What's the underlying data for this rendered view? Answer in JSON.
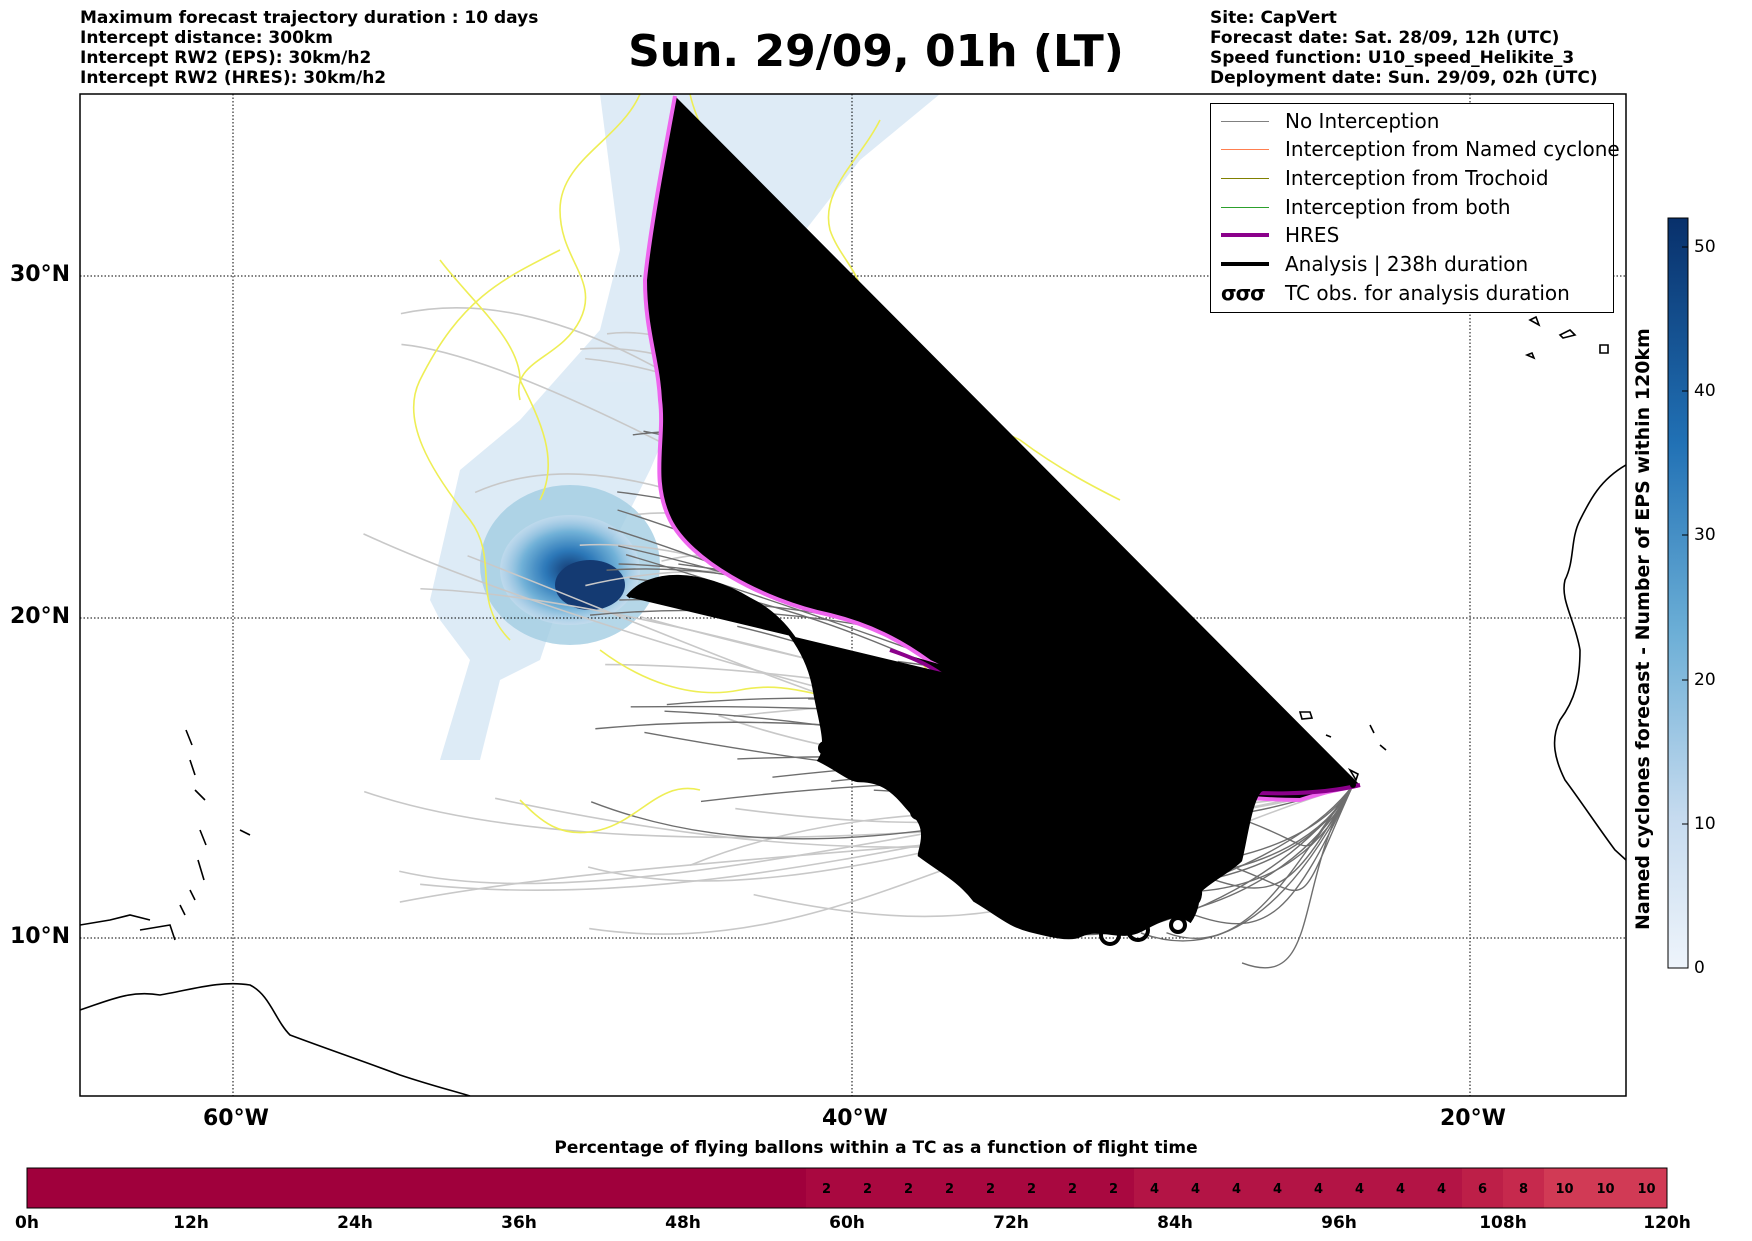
{
  "header_left": {
    "line1": "Maximum forecast trajectory duration : 10 days",
    "line2": "Intercept distance: 300km",
    "line3": "Intercept RW2 (EPS):  30km/h2",
    "line4": "Intercept RW2 (HRES): 30km/h2"
  },
  "title": "Sun. 29/09, 01h (LT)",
  "header_right": {
    "line1": "Site: CapVert",
    "line2": "Forecast date: Sat. 28/09, 12h (UTC)",
    "line3": "Speed function: U10_speed_Helikite_3",
    "line4": "Deployment date: Sun. 29/09, 02h (UTC)"
  },
  "legend": [
    {
      "label": "No Interception",
      "color": "#808080"
    },
    {
      "label": "Interception from Named cyclone",
      "color": "#ff7f50"
    },
    {
      "label": "Interception from Trochoid",
      "color": "#808000"
    },
    {
      "label": "Interception from both",
      "color": "#2ca02c"
    },
    {
      "label": "HRES",
      "color": "#8b008b"
    },
    {
      "label": "Analysis | 238h duration",
      "color": "#000000"
    },
    {
      "label": "TC obs. for analysis duration",
      "color": "#000000",
      "icon": "cyclone-symbols"
    }
  ],
  "map": {
    "lat_labels": [
      "30°N",
      "20°N",
      "10°N"
    ],
    "lon_labels": [
      "60°W",
      "40°W",
      "20°W"
    ],
    "lon_range": [
      -65,
      -15
    ],
    "lat_range": [
      5.4,
      34.6
    ],
    "launch_site": {
      "lon": -23.5,
      "lat": 15.0
    },
    "hres_color": "#ee66ee"
  },
  "colorbar": {
    "title": "Named cyclones forecast - Number of EPS within 120km",
    "ticks": [
      "0",
      "10",
      "20",
      "30",
      "40",
      "50"
    ],
    "range": [
      0,
      52
    ],
    "color_low": "#e4eef9",
    "color_high": "#08306b"
  },
  "time_bar": {
    "title": "Percentage of flying ballons within a TC as a function of flight time",
    "tick_labels": [
      "0h",
      "12h",
      "24h",
      "36h",
      "48h",
      "60h",
      "72h",
      "84h",
      "96h",
      "108h",
      "120h"
    ],
    "cell_values": [
      "",
      "",
      "",
      "",
      "",
      "",
      "",
      "",
      "",
      "",
      "",
      "",
      "",
      "",
      "",
      "",
      "",
      "",
      "",
      "2",
      "2",
      "2",
      "2",
      "2",
      "2",
      "2",
      "2",
      "4",
      "4",
      "4",
      "4",
      "4",
      "4",
      "4",
      "4",
      "6",
      "8",
      "10",
      "10",
      "10"
    ],
    "cell_colors": {
      "0": "#a0003c",
      "2": "#a90840",
      "4": "#b31445",
      "6": "#bd1f48",
      "8": "#c6294d",
      "10": "#d13a55"
    }
  }
}
